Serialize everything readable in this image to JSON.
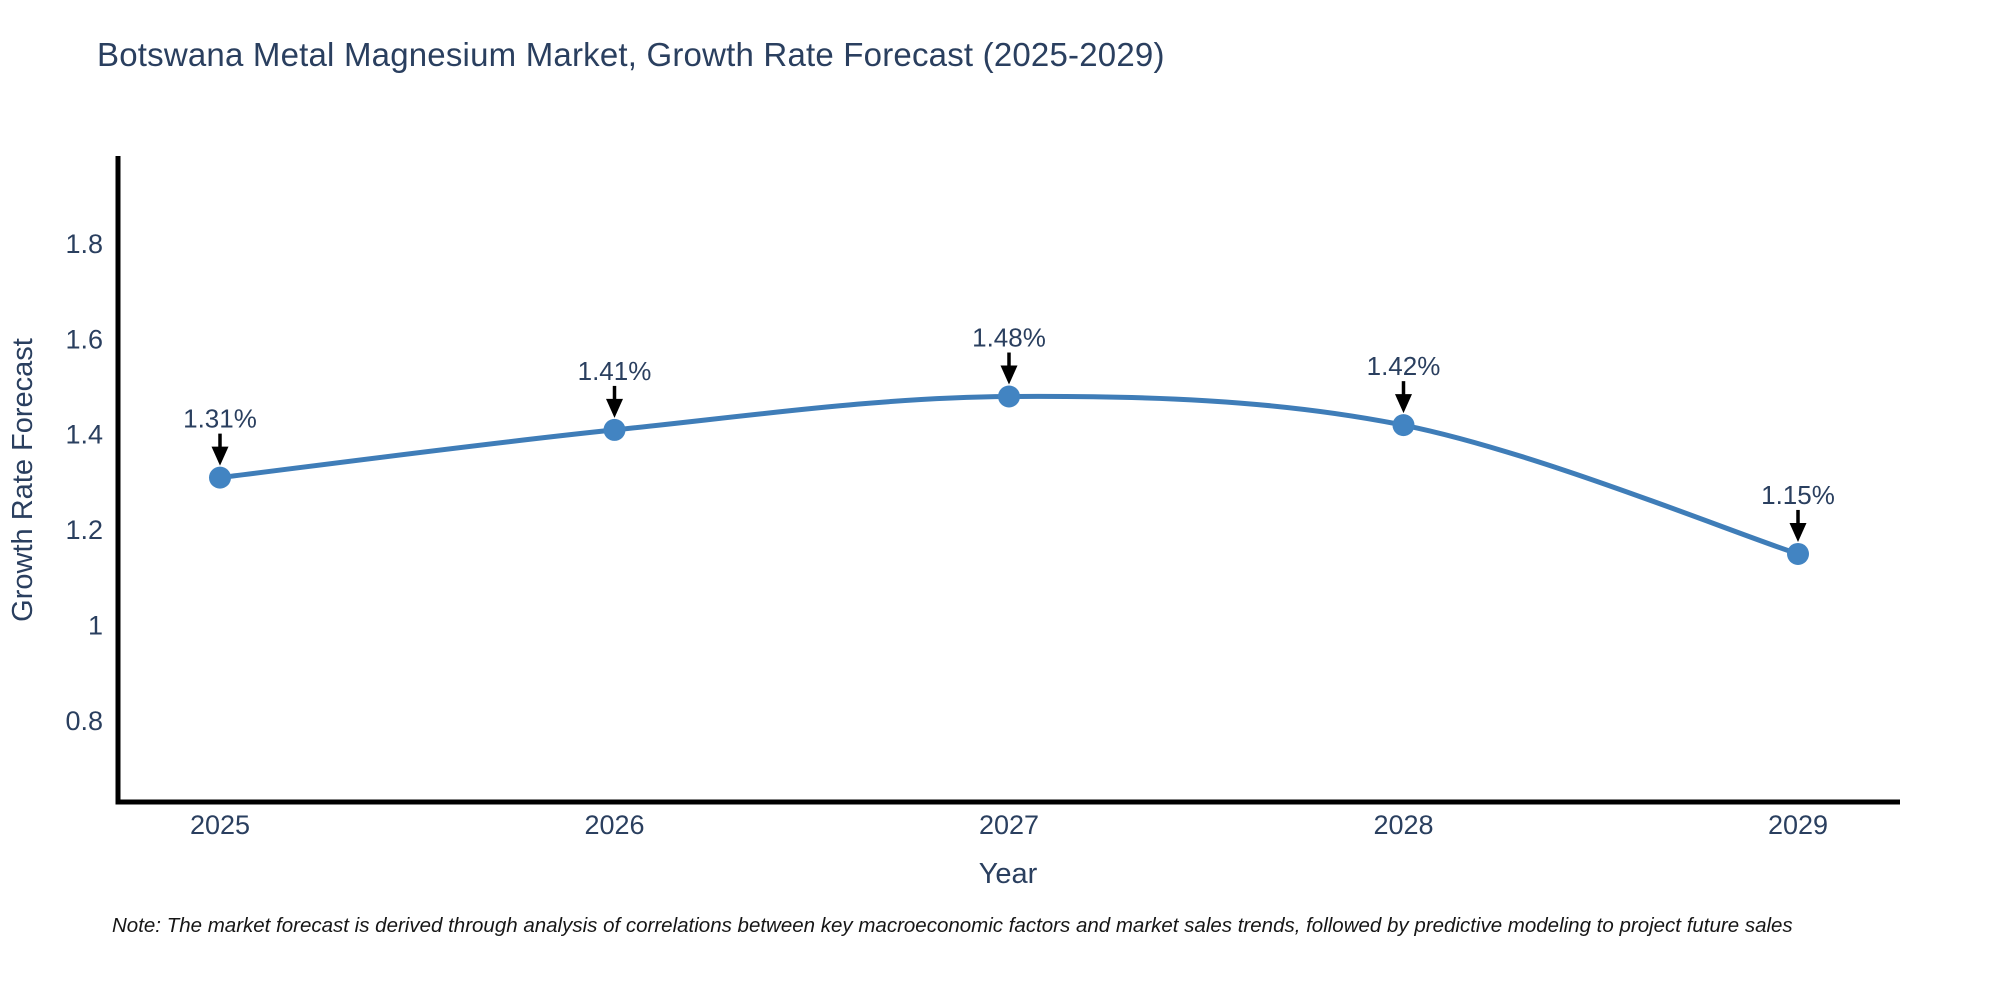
{
  "chart_data": {
    "type": "line",
    "title": "Botswana Metal Magnesium Market, Growth Rate Forecast (2025-2029)",
    "xlabel": "Year",
    "ylabel": "Growth Rate Forecast",
    "x": [
      "2025",
      "2026",
      "2027",
      "2028",
      "2029"
    ],
    "series": [
      {
        "name": "Growth Rate Forecast",
        "values": [
          1.31,
          1.41,
          1.48,
          1.42,
          1.15
        ]
      }
    ],
    "point_labels": [
      "1.31%",
      "1.41%",
      "1.48%",
      "1.42%",
      "1.15%"
    ],
    "y_tick_labels": [
      "0.8",
      "1",
      "1.2",
      "1.4",
      "1.6",
      "1.8"
    ],
    "y_tick_values": [
      0.8,
      1,
      1.2,
      1.4,
      1.6,
      1.8
    ],
    "ylim": [
      0.63,
      1.98
    ],
    "grid": false,
    "legend": "none",
    "line_shape": "spline",
    "annotation_arrows": "black arrows pointing down from each value label to its marker"
  },
  "note": "Note: The market forecast is derived through analysis of correlations between key macroeconomic factors and market sales trends, followed by predictive modeling to project future sales",
  "colors": {
    "text": "#2a3f5f",
    "line": "#3f7db8",
    "marker": "#4284c2",
    "axis": "#000000",
    "arrow": "#000000",
    "note_text": "#161616",
    "background": "#ffffff"
  }
}
